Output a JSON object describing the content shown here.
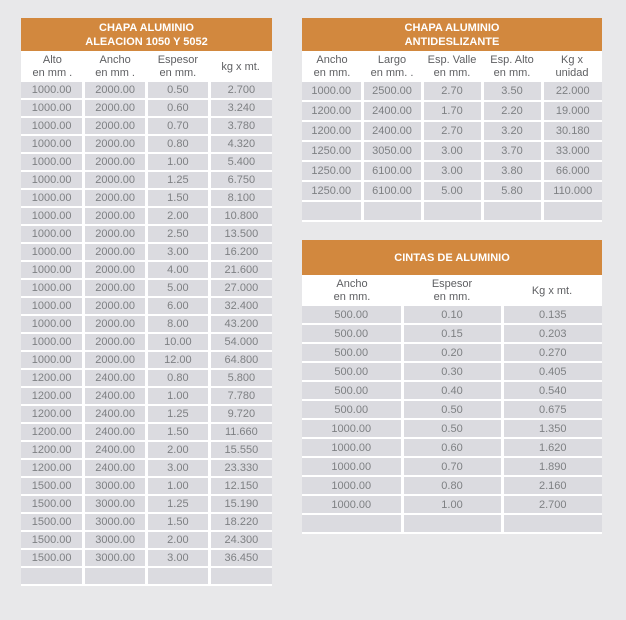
{
  "colors": {
    "header_orange": "#d2883e",
    "header_text": "#ffffff",
    "column_header_bg": "#ffffff",
    "column_header_text": "#5e5f62",
    "cell_bg": "#dbdbe0",
    "cell_text": "#7e8083",
    "page_bg": "#e8e8ea",
    "separator": "#ffffff"
  },
  "tables": {
    "chapa_aleacion": {
      "title_line1": "CHAPA ALUMINIO",
      "title_line2": "ALEACION 1050 Y 5052",
      "columns": [
        [
          "Alto",
          "en mm ."
        ],
        [
          "Ancho",
          "en mm ."
        ],
        [
          "Espesor",
          "en mm."
        ],
        [
          "kg x mt."
        ]
      ],
      "rows": [
        [
          "1000.00",
          "2000.00",
          "0.50",
          "2.700"
        ],
        [
          "1000.00",
          "2000.00",
          "0.60",
          "3.240"
        ],
        [
          "1000.00",
          "2000.00",
          "0.70",
          "3.780"
        ],
        [
          "1000.00",
          "2000.00",
          "0.80",
          "4.320"
        ],
        [
          "1000.00",
          "2000.00",
          "1.00",
          "5.400"
        ],
        [
          "1000.00",
          "2000.00",
          "1.25",
          "6.750"
        ],
        [
          "1000.00",
          "2000.00",
          "1.50",
          "8.100"
        ],
        [
          "1000.00",
          "2000.00",
          "2.00",
          "10.800"
        ],
        [
          "1000.00",
          "2000.00",
          "2.50",
          "13.500"
        ],
        [
          "1000.00",
          "2000.00",
          "3.00",
          "16.200"
        ],
        [
          "1000.00",
          "2000.00",
          "4.00",
          "21.600"
        ],
        [
          "1000.00",
          "2000.00",
          "5.00",
          "27.000"
        ],
        [
          "1000.00",
          "2000.00",
          "6.00",
          "32.400"
        ],
        [
          "1000.00",
          "2000.00",
          "8.00",
          "43.200"
        ],
        [
          "1000.00",
          "2000.00",
          "10.00",
          "54.000"
        ],
        [
          "1000.00",
          "2000.00",
          "12.00",
          "64.800"
        ],
        [
          "1200.00",
          "2400.00",
          "0.80",
          "5.800"
        ],
        [
          "1200.00",
          "2400.00",
          "1.00",
          "7.780"
        ],
        [
          "1200.00",
          "2400.00",
          "1.25",
          "9.720"
        ],
        [
          "1200.00",
          "2400.00",
          "1.50",
          "11.660"
        ],
        [
          "1200.00",
          "2400.00",
          "2.00",
          "15.550"
        ],
        [
          "1200.00",
          "2400.00",
          "3.00",
          "23.330"
        ],
        [
          "1500.00",
          "3000.00",
          "1.00",
          "12.150"
        ],
        [
          "1500.00",
          "3000.00",
          "1.25",
          "15.190"
        ],
        [
          "1500.00",
          "3000.00",
          "1.50",
          "18.220"
        ],
        [
          "1500.00",
          "3000.00",
          "2.00",
          "24.300"
        ],
        [
          "1500.00",
          "3000.00",
          "3.00",
          "36.450"
        ],
        [
          "",
          "",
          "",
          ""
        ]
      ]
    },
    "chapa_antideslizante": {
      "title_line1": "CHAPA ALUMINIO",
      "title_line2": "ANTIDESLIZANTE",
      "columns": [
        [
          "Ancho",
          "en mm."
        ],
        [
          "Largo",
          "en mm. ."
        ],
        [
          "Esp. Valle",
          "en mm."
        ],
        [
          "Esp. Alto",
          "en mm."
        ],
        [
          "Kg x",
          "unidad"
        ]
      ],
      "rows": [
        [
          "1000.00",
          "2500.00",
          "2.70",
          "3.50",
          "22.000"
        ],
        [
          "1200.00",
          "2400.00",
          "1.70",
          "2.20",
          "19.000"
        ],
        [
          "1200.00",
          "2400.00",
          "2.70",
          "3.20",
          "30.180"
        ],
        [
          "1250.00",
          "3050.00",
          "3.00",
          "3.70",
          "33.000"
        ],
        [
          "1250.00",
          "6100.00",
          "3.00",
          "3.80",
          "66.000"
        ],
        [
          "1250.00",
          "6100.00",
          "5.00",
          "5.80",
          "110.000"
        ],
        [
          "",
          "",
          "",
          "",
          ""
        ]
      ]
    },
    "cintas": {
      "title_line1": "CINTAS DE ALUMINIO",
      "columns": [
        [
          "Ancho",
          "en mm."
        ],
        [
          "Espesor",
          "en mm."
        ],
        [
          "Kg x mt."
        ]
      ],
      "rows": [
        [
          "500.00",
          "0.10",
          "0.135"
        ],
        [
          "500.00",
          "0.15",
          "0.203"
        ],
        [
          "500.00",
          "0.20",
          "0.270"
        ],
        [
          "500.00",
          "0.30",
          "0.405"
        ],
        [
          "500.00",
          "0.40",
          "0.540"
        ],
        [
          "500.00",
          "0.50",
          "0.675"
        ],
        [
          "1000.00",
          "0.50",
          "1.350"
        ],
        [
          "1000.00",
          "0.60",
          "1.620"
        ],
        [
          "1000.00",
          "0.70",
          "1.890"
        ],
        [
          "1000.00",
          "0.80",
          "2.160"
        ],
        [
          "1000.00",
          "1.00",
          "2.700"
        ],
        [
          "",
          "",
          ""
        ]
      ]
    }
  }
}
